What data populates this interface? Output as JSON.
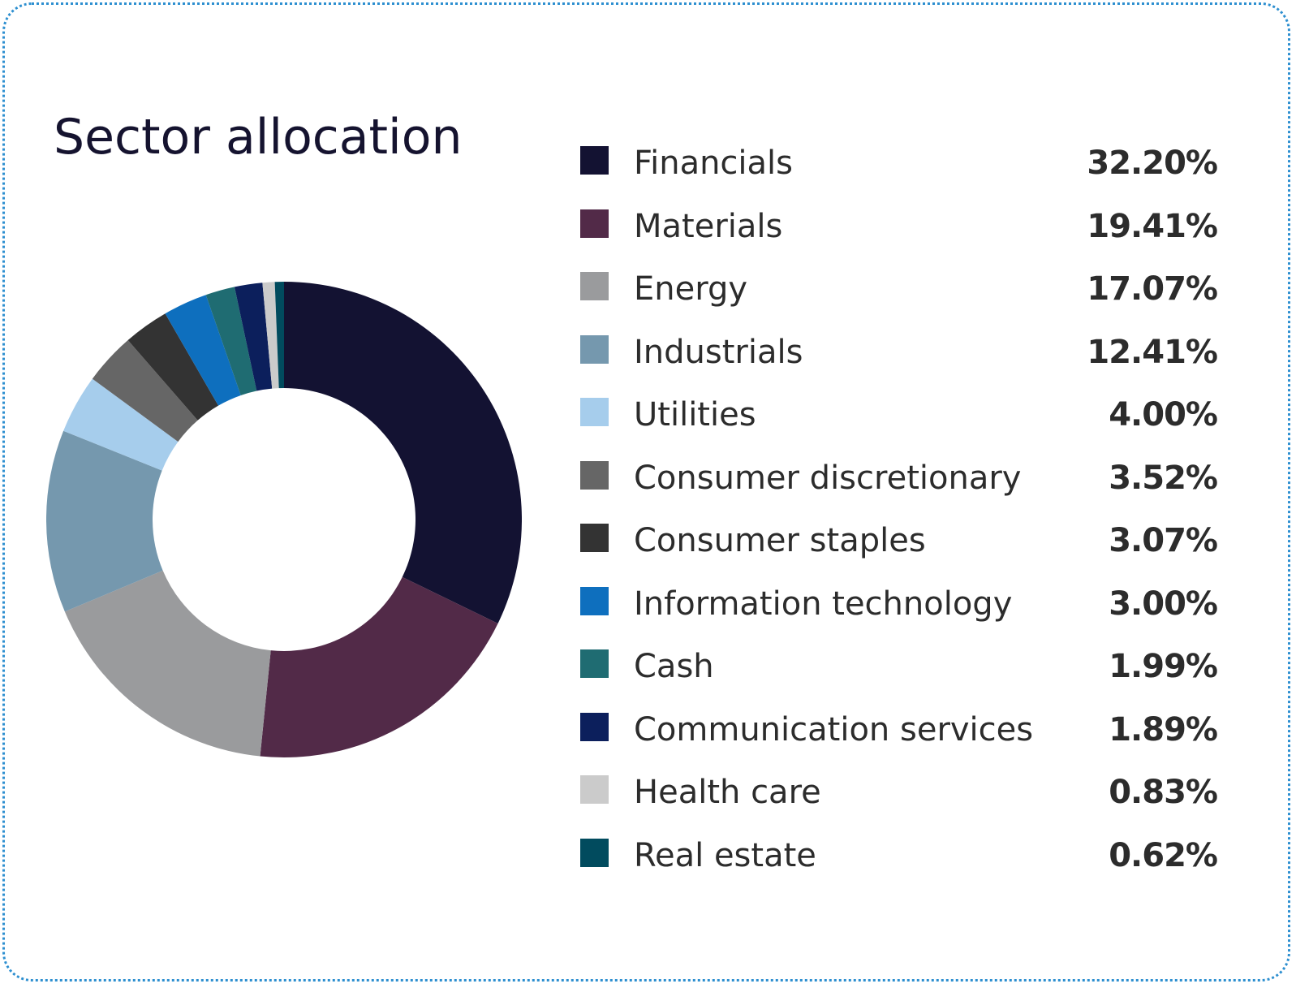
{
  "title": "Sector allocation",
  "chart_data": {
    "type": "pie",
    "variant": "donut",
    "title": "Sector allocation",
    "unit": "%",
    "legend_position": "right",
    "slices": [
      {
        "label": "Financials",
        "value": 32.2,
        "display": "32.20%",
        "color": "#131232"
      },
      {
        "label": "Materials",
        "value": 19.41,
        "display": "19.41%",
        "color": "#522a48"
      },
      {
        "label": "Energy",
        "value": 17.07,
        "display": "17.07%",
        "color": "#9a9b9d"
      },
      {
        "label": "Industrials",
        "value": 12.41,
        "display": "12.41%",
        "color": "#7598ae"
      },
      {
        "label": "Utilities",
        "value": 4.0,
        "display": "4.00%",
        "color": "#a6cdec"
      },
      {
        "label": "Consumer discretionary",
        "value": 3.52,
        "display": "3.52%",
        "color": "#666666"
      },
      {
        "label": "Consumer staples",
        "value": 3.07,
        "display": "3.07%",
        "color": "#333333"
      },
      {
        "label": "Information technology",
        "value": 3.0,
        "display": "3.00%",
        "color": "#0e6fbe"
      },
      {
        "label": "Cash",
        "value": 1.99,
        "display": "1.99%",
        "color": "#1f6c72"
      },
      {
        "label": "Communication services",
        "value": 1.89,
        "display": "1.89%",
        "color": "#0c1f5c"
      },
      {
        "label": "Health care",
        "value": 0.83,
        "display": "0.83%",
        "color": "#cbcbcb"
      },
      {
        "label": "Real estate",
        "value": 0.62,
        "display": "0.62%",
        "color": "#014b5e"
      }
    ]
  }
}
